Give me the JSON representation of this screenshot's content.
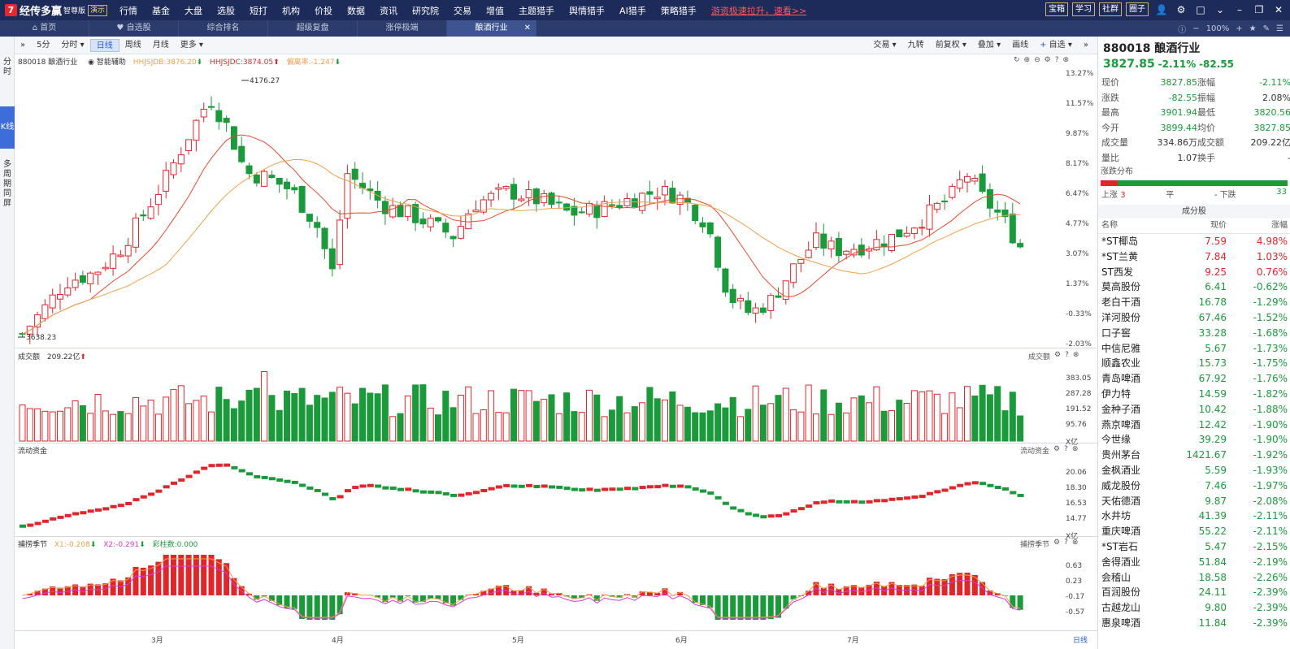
{
  "app": {
    "logo_mark": "7",
    "name": "经传多赢",
    "edition": "智尊版",
    "demo": "演示"
  },
  "menu": [
    "行情",
    "基金",
    "大盘",
    "选股",
    "短打",
    "机构",
    "价投",
    "数据",
    "资讯",
    "研究院",
    "交易",
    "增值",
    "主题猎手",
    "舆情猎手",
    "AI猎手",
    "策略猎手"
  ],
  "promo": "游资极速拉升，速看>>",
  "topright": [
    "宝箱",
    "学习",
    "社群",
    "圈子"
  ],
  "tabs": [
    "首页",
    "自选股",
    "综合排名",
    "超级复盘",
    "涨停极端",
    "酿酒行业"
  ],
  "zoom": "100%",
  "side_tabs": [
    "分时",
    "K线",
    "多周期同屏"
  ],
  "periods": [
    "5分",
    "分时",
    "日线",
    "周线",
    "月线",
    "更多"
  ],
  "tools_right": [
    "交易",
    "九转",
    "前复权",
    "叠加",
    "画线",
    "自选"
  ],
  "main_legend": {
    "name": "880018 酿酒行业",
    "assist": "智能辅助",
    "l1": "HHJSJDB:3876.20",
    "l2": "HHJSJDC:3874.05",
    "l3": "偏离率:-1.247"
  },
  "price_high": "4176.27",
  "price_low": "3638.23",
  "price_ticks": [
    "13.27%",
    "11.57%",
    "9.87%",
    "8.17%",
    "6.47%",
    "4.77%",
    "3.07%",
    "1.37%",
    "-0.33%",
    "-2.03%"
  ],
  "vol_legend": {
    "title": "成交额",
    "value": "209.22亿"
  },
  "vol_ticks": [
    "383.05",
    "287.28",
    "191.52",
    "95.76",
    "X亿"
  ],
  "vol_side": "成交额",
  "flow_legend": "流动资金",
  "flow_side": "流动资金",
  "flow_ticks": [
    "20.06",
    "18.30",
    "16.53",
    "14.77",
    "X亿"
  ],
  "ind_legend": {
    "title": "捕捞季节",
    "x1": "X1:-0.208",
    "x2": "X2:-0.291",
    "c": "彩柱数:0.000"
  },
  "ind_side": "捕捞季节",
  "ind_ticks": [
    "0.63",
    "0.23",
    "-0.17",
    "-0.57"
  ],
  "months": [
    "3月",
    "4月",
    "5月",
    "6月",
    "7月"
  ],
  "period_label": "日线",
  "stock": {
    "code": "880018 酿酒行业",
    "price": "3827.85",
    "pct": "-2.11%",
    "chg": "-82.55"
  },
  "stats": [
    [
      "现价",
      "3827.85",
      "g",
      "涨幅",
      "-2.11%",
      "g"
    ],
    [
      "涨跌",
      "-82.55",
      "g",
      "振幅",
      "2.08%",
      "k"
    ],
    [
      "最高",
      "3901.94",
      "g",
      "最低",
      "3820.56",
      "g"
    ],
    [
      "今开",
      "3899.44",
      "g",
      "均价",
      "3827.85",
      "g"
    ],
    [
      "成交量",
      "334.86万",
      "k",
      "成交额",
      "209.22亿",
      "k"
    ],
    [
      "量比",
      "1.07",
      "k",
      "换手",
      "-",
      "k"
    ]
  ],
  "dist": {
    "title": "涨跌分布",
    "up_label": "上涨",
    "up": "3",
    "flat_label": "平",
    "flat": "-",
    "down_label": "下跌",
    "down": "33"
  },
  "components_title": "成分股",
  "comp_header": [
    "名称",
    "现价",
    "涨幅"
  ],
  "components": [
    [
      "*ST椰岛",
      "7.59",
      "4.98%"
    ],
    [
      "*ST兰黄",
      "7.84",
      "1.03%"
    ],
    [
      "ST西发",
      "9.25",
      "0.76%"
    ],
    [
      "莫高股份",
      "6.41",
      "-0.62%"
    ],
    [
      "老白干酒",
      "16.78",
      "-1.29%"
    ],
    [
      "洋河股份",
      "67.46",
      "-1.52%"
    ],
    [
      "口子窖",
      "33.28",
      "-1.68%"
    ],
    [
      "中信尼雅",
      "5.67",
      "-1.73%"
    ],
    [
      "顺鑫农业",
      "15.73",
      "-1.75%"
    ],
    [
      "青岛啤酒",
      "67.92",
      "-1.76%"
    ],
    [
      "伊力特",
      "14.59",
      "-1.82%"
    ],
    [
      "金种子酒",
      "10.42",
      "-1.88%"
    ],
    [
      "燕京啤酒",
      "12.42",
      "-1.90%"
    ],
    [
      "今世缘",
      "39.29",
      "-1.90%"
    ],
    [
      "贵州茅台",
      "1421.67",
      "-1.92%"
    ],
    [
      "金枫酒业",
      "5.59",
      "-1.93%"
    ],
    [
      "威龙股份",
      "7.46",
      "-1.97%"
    ],
    [
      "天佑德酒",
      "9.87",
      "-2.08%"
    ],
    [
      "水井坊",
      "41.39",
      "-2.11%"
    ],
    [
      "重庆啤酒",
      "55.22",
      "-2.11%"
    ],
    [
      "*ST岩石",
      "5.47",
      "-2.15%"
    ],
    [
      "舍得酒业",
      "51.84",
      "-2.19%"
    ],
    [
      "会稽山",
      "18.58",
      "-2.26%"
    ],
    [
      "百润股份",
      "24.11",
      "-2.39%"
    ],
    [
      "古越龙山",
      "9.80",
      "-2.39%"
    ],
    [
      "惠泉啤酒",
      "11.84",
      "-2.39%"
    ]
  ],
  "colors": {
    "up": "#e0262b",
    "down": "#1a9a3a",
    "ma1": "#e8492b",
    "ma2": "#f0a04a",
    "flow": "#e0262b",
    "x1": "#f0a04a",
    "x2": "#d63cd6"
  }
}
